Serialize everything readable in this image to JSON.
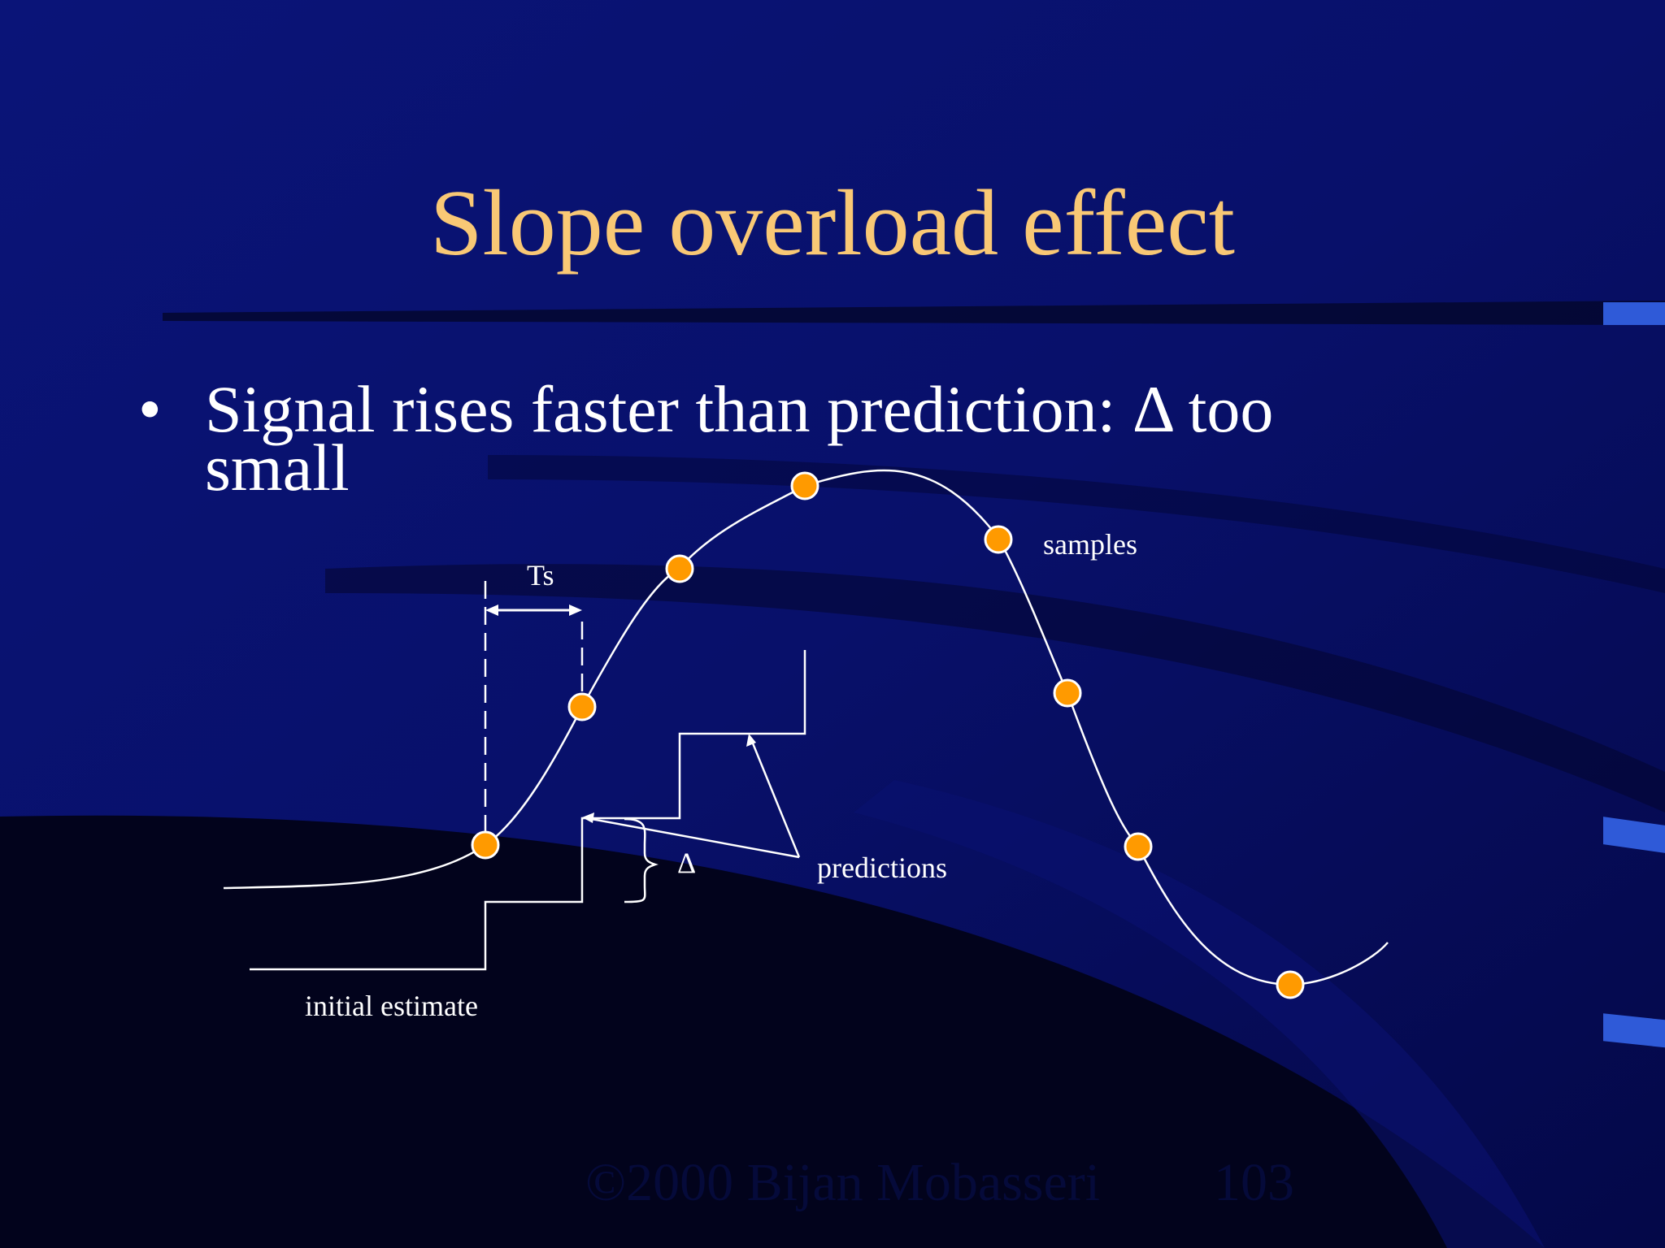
{
  "slide": {
    "title": "Slope overload effect",
    "bullet": {
      "symbol": "•",
      "text": "Signal rises faster than prediction: Δ too small"
    },
    "colors": {
      "background": "#060a4a",
      "title": "#f9c875",
      "sample_fill": "#ff9a00",
      "line": "#ffffff"
    }
  },
  "diagram": {
    "labels": {
      "ts": "Ts",
      "samples": "samples",
      "delta": "Δ",
      "predictions": "predictions",
      "initial_estimate": "initial estimate"
    }
  },
  "footer": {
    "copyright": "©2000 Bijan Mobasseri",
    "page_number": "103"
  }
}
